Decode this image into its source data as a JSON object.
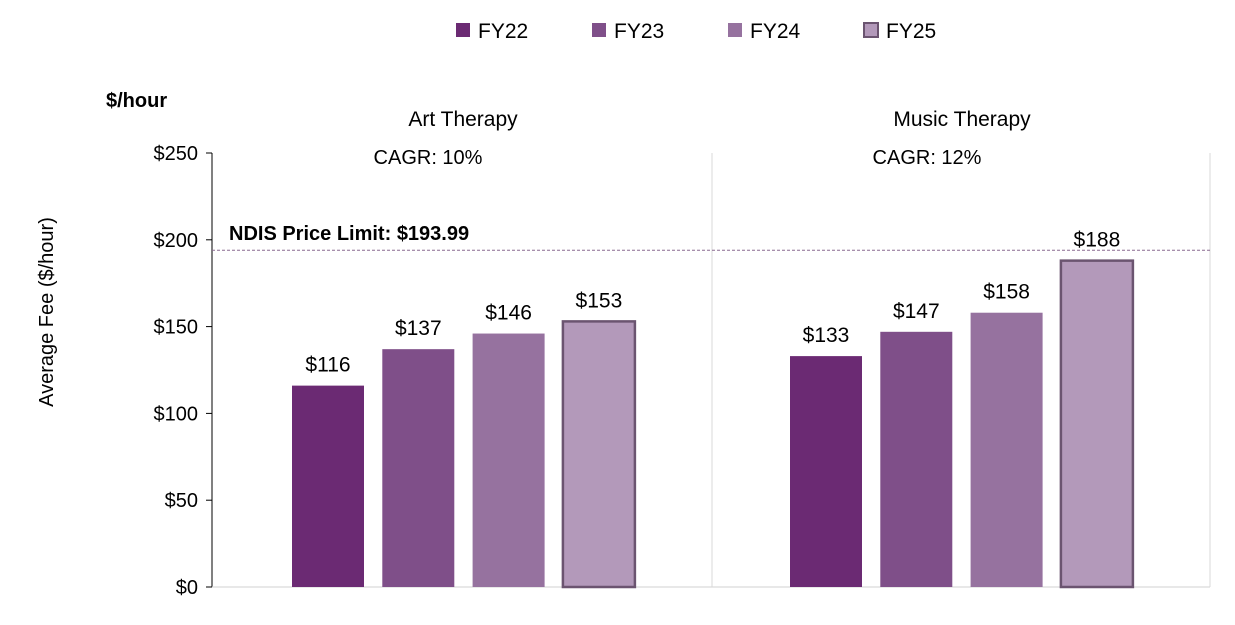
{
  "chart_data": {
    "type": "bar",
    "unit_label": "$/hour",
    "ylabel": "Average Fee ($/hour)",
    "ylim": [
      0,
      250
    ],
    "yticks": [
      0,
      50,
      100,
      150,
      200,
      250
    ],
    "ytick_labels": [
      "$0",
      "$50",
      "$100",
      "$150",
      "$200",
      "$250"
    ],
    "legend_position": "top",
    "grid": false,
    "series_names": [
      "FY22",
      "FY23",
      "FY24",
      "FY25"
    ],
    "series_colors": [
      "#6b2a73",
      "#7f4f89",
      "#96729f",
      "#b399ba"
    ],
    "highlight_border_color": "#6b5470",
    "groups": [
      {
        "name": "Art Therapy",
        "cagr": "CAGR: 10%",
        "values": [
          116,
          137,
          146,
          153
        ],
        "labels": [
          "$116",
          "$137",
          "$146",
          "$153"
        ]
      },
      {
        "name": "Music Therapy",
        "cagr": "CAGR: 12%",
        "values": [
          133,
          147,
          158,
          188
        ],
        "labels": [
          "$133",
          "$147",
          "$158",
          "$188"
        ]
      }
    ],
    "reference_line": {
      "value": 193.99,
      "label": "NDIS Price Limit: $193.99",
      "color": "#8a6a90",
      "style": "dashed"
    }
  }
}
